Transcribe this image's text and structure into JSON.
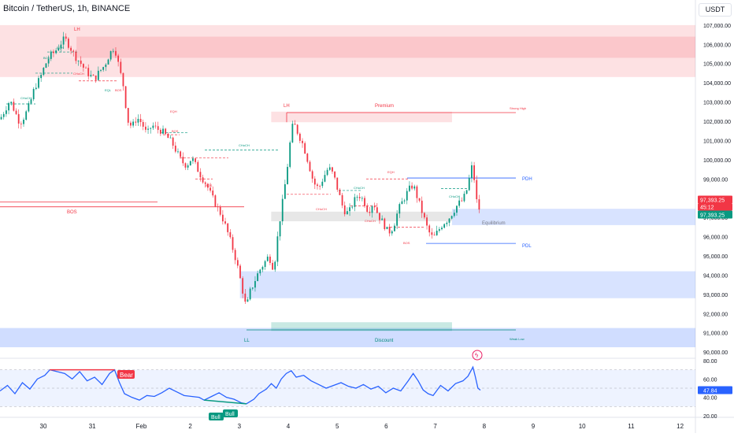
{
  "header": {
    "title": "Bitcoin / TetherUS, 1h, BINANCE",
    "currency": "USDT"
  },
  "price_axis": {
    "ticks": [
      "107,000.00",
      "106,000.00",
      "105,000.00",
      "104,000.00",
      "103,000.00",
      "102,000.00",
      "101,000.00",
      "100,000.00",
      "99,000.00",
      "98,000.00",
      "97,000.00",
      "96,000.00",
      "95,000.00",
      "94,000.00",
      "93,000.00",
      "92,000.00",
      "91,000.00",
      "90,000.00"
    ],
    "last_price": "97,393.25",
    "countdown": "45:12",
    "last_price_2": "97,393.25"
  },
  "rsi_axis": {
    "ticks": [
      "80.00",
      "60.00",
      "40.00",
      "20.00"
    ],
    "value": "47.84"
  },
  "time_axis": [
    "30",
    "31",
    "Feb",
    "2",
    "3",
    "4",
    "5",
    "6",
    "7",
    "8",
    "9",
    "10",
    "11",
    "12"
  ],
  "zones": [
    {
      "kind": "supply",
      "low": 104300,
      "high": 107000,
      "x0": 0,
      "x1": 1
    },
    {
      "kind": "supply",
      "low": 105300,
      "high": 106400,
      "x0": 0.11,
      "x1": 1
    },
    {
      "kind": "supply",
      "low": 101950,
      "high": 102500,
      "x0": 0.39,
      "x1": 0.65
    },
    {
      "kind": "equilibrium",
      "low": 96800,
      "high": 97300,
      "x0": 0.39,
      "x1": 0.65
    },
    {
      "kind": "demand",
      "low": 96600,
      "high": 97450,
      "x0": 0.65,
      "x1": 1
    },
    {
      "kind": "demand",
      "low": 92800,
      "high": 94200,
      "x0": 0.345,
      "x1": 1
    },
    {
      "kind": "discount",
      "low": 90250,
      "high": 91250,
      "x0": 0,
      "x1": 1
    },
    {
      "kind": "discount_inner",
      "low": 91100,
      "high": 91550,
      "x0": 0.39,
      "x1": 0.65
    }
  ],
  "labels": {
    "lh1": "LH",
    "lh2": "LH",
    "premium": "Premium",
    "strong_high": "Strong High",
    "pdh": "PDH",
    "pdl": "PDL",
    "equilibrium": "Equilibrium",
    "ll": "LL",
    "discount": "Discount",
    "weak_low": "Weak Low",
    "bos": "BOS",
    "choch": "CHoCH",
    "eqh": "EQH",
    "eql": "EQL",
    "bear": "Bear",
    "bull": "Bull"
  },
  "colors": {
    "up": "#089981",
    "down": "#f23645",
    "rsi": "#2962ff",
    "supply": "#f23645",
    "demand": "#2962ff",
    "green_zone": "#089981"
  },
  "chart_data": {
    "type": "candlestick",
    "title": "Bitcoin / TetherUS, 1h, BINANCE",
    "x_axis_dates": [
      "30",
      "31",
      "Feb",
      "2",
      "3",
      "4",
      "5",
      "6",
      "7",
      "8",
      "9",
      "10",
      "11",
      "12"
    ],
    "ylim": [
      89800,
      107200
    ],
    "key_levels": {
      "PDH": 99050,
      "PDL": 95650,
      "strong_high": 102450,
      "weak_low": 91150,
      "BOS": 97550
    },
    "close_path": [
      [
        0,
        102100
      ],
      [
        4,
        102600
      ],
      [
        8,
        103100
      ],
      [
        12,
        102500
      ],
      [
        16,
        101900
      ],
      [
        20,
        102300
      ],
      [
        24,
        102900
      ],
      [
        28,
        103800
      ],
      [
        32,
        104200
      ],
      [
        36,
        104900
      ],
      [
        40,
        105400
      ],
      [
        44,
        105600
      ],
      [
        48,
        106000
      ],
      [
        52,
        106300
      ],
      [
        56,
        105900
      ],
      [
        60,
        105400
      ],
      [
        64,
        105100
      ],
      [
        68,
        104700
      ],
      [
        72,
        104400
      ],
      [
        76,
        104200
      ],
      [
        80,
        104600
      ],
      [
        84,
        104900
      ],
      [
        88,
        105500
      ],
      [
        92,
        105900
      ],
      [
        96,
        104700
      ],
      [
        100,
        103600
      ],
      [
        102,
        102100
      ],
      [
        106,
        101700
      ],
      [
        110,
        102200
      ],
      [
        114,
        101900
      ],
      [
        118,
        101300
      ],
      [
        122,
        101800
      ],
      [
        126,
        101600
      ],
      [
        130,
        101500
      ],
      [
        134,
        101200
      ],
      [
        138,
        100900
      ],
      [
        142,
        100400
      ],
      [
        146,
        99900
      ],
      [
        150,
        99700
      ],
      [
        154,
        100100
      ],
      [
        158,
        99600
      ],
      [
        162,
        99100
      ],
      [
        166,
        98700
      ],
      [
        170,
        98100
      ],
      [
        174,
        97600
      ],
      [
        178,
        97100
      ],
      [
        182,
        96400
      ],
      [
        186,
        95600
      ],
      [
        190,
        94700
      ],
      [
        194,
        93500
      ],
      [
        198,
        92200
      ],
      [
        200,
        93000
      ],
      [
        204,
        93600
      ],
      [
        208,
        94200
      ],
      [
        212,
        94600
      ],
      [
        216,
        95000
      ],
      [
        220,
        94300
      ],
      [
        224,
        96500
      ],
      [
        228,
        98200
      ],
      [
        232,
        100200
      ],
      [
        234,
        101500
      ],
      [
        236,
        101900
      ],
      [
        240,
        101300
      ],
      [
        244,
        100700
      ],
      [
        248,
        99800
      ],
      [
        252,
        98800
      ],
      [
        256,
        98500
      ],
      [
        260,
        99100
      ],
      [
        264,
        99600
      ],
      [
        268,
        99200
      ],
      [
        272,
        98300
      ],
      [
        276,
        97400
      ],
      [
        280,
        97200
      ],
      [
        284,
        97800
      ],
      [
        288,
        98200
      ],
      [
        292,
        97900
      ],
      [
        296,
        97300
      ],
      [
        300,
        97800
      ],
      [
        304,
        97100
      ],
      [
        308,
        96700
      ],
      [
        312,
        96200
      ],
      [
        316,
        96500
      ],
      [
        320,
        97400
      ],
      [
        324,
        97900
      ],
      [
        328,
        98400
      ],
      [
        332,
        98700
      ],
      [
        336,
        97900
      ],
      [
        340,
        97100
      ],
      [
        344,
        96300
      ],
      [
        348,
        95900
      ],
      [
        352,
        96300
      ],
      [
        356,
        96700
      ],
      [
        360,
        96900
      ],
      [
        364,
        97300
      ],
      [
        368,
        97700
      ],
      [
        372,
        97900
      ],
      [
        376,
        98600
      ],
      [
        378,
        99400
      ],
      [
        380,
        99800
      ],
      [
        382,
        98200
      ],
      [
        384,
        97500
      ],
      [
        386,
        97400
      ]
    ],
    "rsi": {
      "ylim": [
        20,
        80
      ],
      "upper": 70,
      "lower": 30,
      "mid": 50,
      "last": 47.84,
      "path": [
        [
          0,
          47
        ],
        [
          6,
          53
        ],
        [
          12,
          44
        ],
        [
          18,
          56
        ],
        [
          24,
          49
        ],
        [
          30,
          60
        ],
        [
          36,
          64
        ],
        [
          40,
          70
        ],
        [
          46,
          68
        ],
        [
          52,
          66
        ],
        [
          58,
          60
        ],
        [
          64,
          68
        ],
        [
          70,
          58
        ],
        [
          76,
          62
        ],
        [
          82,
          54
        ],
        [
          88,
          66
        ],
        [
          92,
          70
        ],
        [
          96,
          56
        ],
        [
          100,
          44
        ],
        [
          106,
          40
        ],
        [
          112,
          37
        ],
        [
          118,
          42
        ],
        [
          124,
          41
        ],
        [
          130,
          45
        ],
        [
          136,
          50
        ],
        [
          142,
          46
        ],
        [
          148,
          42
        ],
        [
          154,
          41
        ],
        [
          160,
          40
        ],
        [
          164,
          37
        ],
        [
          170,
          41
        ],
        [
          176,
          45
        ],
        [
          182,
          40
        ],
        [
          188,
          38
        ],
        [
          194,
          34
        ],
        [
          198,
          33
        ],
        [
          204,
          38
        ],
        [
          208,
          44
        ],
        [
          214,
          49
        ],
        [
          218,
          55
        ],
        [
          222,
          50
        ],
        [
          226,
          60
        ],
        [
          230,
          66
        ],
        [
          234,
          69
        ],
        [
          238,
          62
        ],
        [
          244,
          64
        ],
        [
          250,
          58
        ],
        [
          256,
          54
        ],
        [
          262,
          50
        ],
        [
          268,
          53
        ],
        [
          274,
          56
        ],
        [
          280,
          52
        ],
        [
          286,
          50
        ],
        [
          292,
          54
        ],
        [
          298,
          49
        ],
        [
          304,
          52
        ],
        [
          310,
          45
        ],
        [
          316,
          50
        ],
        [
          322,
          47
        ],
        [
          328,
          58
        ],
        [
          332,
          66
        ],
        [
          336,
          58
        ],
        [
          340,
          48
        ],
        [
          344,
          44
        ],
        [
          348,
          42
        ],
        [
          354,
          53
        ],
        [
          360,
          47
        ],
        [
          366,
          55
        ],
        [
          372,
          58
        ],
        [
          376,
          63
        ],
        [
          380,
          73
        ],
        [
          382,
          62
        ],
        [
          384,
          50
        ],
        [
          386,
          47.84
        ]
      ]
    }
  }
}
